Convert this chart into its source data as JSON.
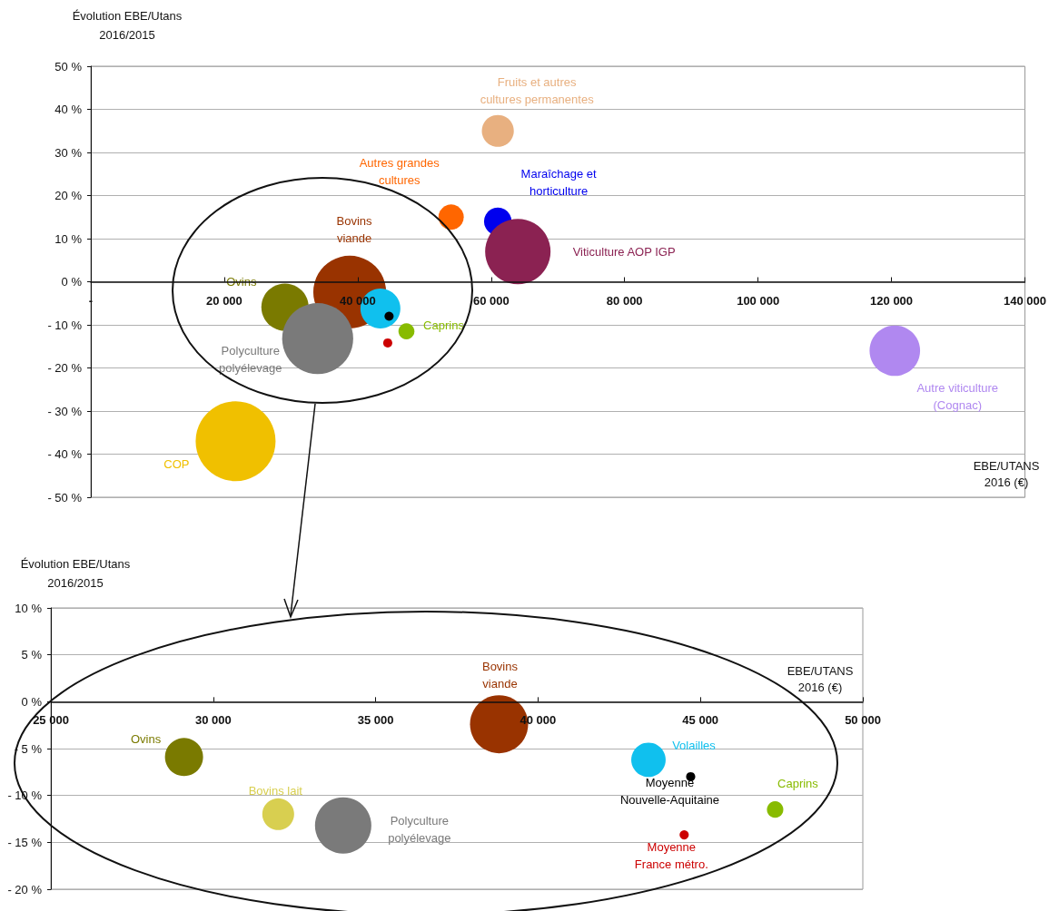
{
  "chart_data": [
    {
      "type": "bubble",
      "ylabel": "Évolution EBE/Utans\n2016/2015",
      "xlabel": "EBE/UTANS\n2016 (€)",
      "xlim": [
        0,
        140000
      ],
      "ylim": [
        -50,
        50
      ],
      "xticks": [
        {
          "value": 0,
          "label": "-"
        },
        {
          "value": 20000,
          "label": "20 000"
        },
        {
          "value": 40000,
          "label": "40 000"
        },
        {
          "value": 60000,
          "label": "60 000"
        },
        {
          "value": 80000,
          "label": "80 000"
        },
        {
          "value": 100000,
          "label": "100 000"
        },
        {
          "value": 120000,
          "label": "120 000"
        },
        {
          "value": 140000,
          "label": "140 000"
        }
      ],
      "yticks": [
        {
          "value": 50,
          "label": "50 %"
        },
        {
          "value": 40,
          "label": "40 %"
        },
        {
          "value": 30,
          "label": "30 %"
        },
        {
          "value": 20,
          "label": "20 %"
        },
        {
          "value": 10,
          "label": "10 %"
        },
        {
          "value": 0,
          "label": "0 %"
        },
        {
          "value": -10,
          "label": "- 10 %"
        },
        {
          "value": -20,
          "label": "- 20 %"
        },
        {
          "value": -30,
          "label": "- 30 %"
        },
        {
          "value": -40,
          "label": "- 40 %"
        },
        {
          "value": -50,
          "label": "- 50 %"
        }
      ],
      "grid": "y",
      "legend": false,
      "series": [
        {
          "name": "Fruits et autres\ncultures permanentes",
          "color": "#e8b080",
          "x": [
            61000
          ],
          "values": [
            35
          ],
          "sizes": [
            0.16
          ]
        },
        {
          "name": "Autres grandes\ncultures",
          "color": "#ff6600",
          "x": [
            54000
          ],
          "values": [
            15
          ],
          "sizes": [
            0.1
          ]
        },
        {
          "name": "Maraîchage et\nhorticulture",
          "color": "#0000ee",
          "x": [
            61000
          ],
          "values": [
            14
          ],
          "sizes": [
            0.12
          ]
        },
        {
          "name": "Viticulture AOP IGP",
          "color": "#8b2252",
          "x": [
            64000
          ],
          "values": [
            7
          ],
          "sizes": [
            0.67
          ]
        },
        {
          "name": "Bovins\nviande",
          "color": "#993300",
          "x": [
            38800
          ],
          "values": [
            -2.4
          ],
          "sizes": [
            0.83
          ]
        },
        {
          "name": "Ovins",
          "color": "#7a7a00",
          "x": [
            29100
          ],
          "values": [
            -5.9
          ],
          "sizes": [
            0.35
          ]
        },
        {
          "name": "Polyculture\npolyélevage",
          "color": "#7a7a7a",
          "x": [
            34000
          ],
          "values": [
            -13.2
          ],
          "sizes": [
            0.79
          ]
        },
        {
          "color": "#10c0ee",
          "x": [
            43400
          ],
          "values": [
            -6.2
          ],
          "sizes": [
            0.25
          ]
        },
        {
          "color": "#000000",
          "x": [
            44700
          ],
          "values": [
            -8
          ],
          "sizes": [
            0.013
          ]
        },
        {
          "color": "#cc0000",
          "x": [
            44500
          ],
          "values": [
            -14.2
          ],
          "sizes": [
            0.013
          ]
        },
        {
          "name": "Caprins",
          "color": "#88bb00",
          "x": [
            47300
          ],
          "values": [
            -11.5
          ],
          "sizes": [
            0.04
          ]
        },
        {
          "name": "COP",
          "color": "#f0c000",
          "x": [
            21700
          ],
          "values": [
            -37
          ],
          "sizes": [
            1
          ]
        },
        {
          "name": "Autre viticulture\n(Cognac)",
          "color": "#b088f0",
          "x": [
            120500
          ],
          "values": [
            -16
          ],
          "sizes": [
            0.4
          ]
        }
      ]
    },
    {
      "type": "bubble",
      "ylabel": "Évolution EBE/Utans\n2016/2015",
      "xlabel": "EBE/UTANS\n2016 (€)",
      "xlim": [
        25000,
        50000
      ],
      "ylim": [
        -20,
        10
      ],
      "xticks": [
        {
          "value": 25000,
          "label": "25 000"
        },
        {
          "value": 30000,
          "label": "30 000"
        },
        {
          "value": 35000,
          "label": "35 000"
        },
        {
          "value": 40000,
          "label": "40 000"
        },
        {
          "value": 45000,
          "label": "45 000"
        },
        {
          "value": 50000,
          "label": "50 000"
        }
      ],
      "yticks": [
        {
          "value": 10,
          "label": "10 %"
        },
        {
          "value": 5,
          "label": "5 %"
        },
        {
          "value": 0,
          "label": "0 %"
        },
        {
          "value": -5,
          "label": "- 5 %"
        },
        {
          "value": -10,
          "label": "- 10 %"
        },
        {
          "value": -15,
          "label": "- 15 %"
        },
        {
          "value": -20,
          "label": "- 20 %"
        }
      ],
      "grid": "y",
      "legend": false,
      "series": [
        {
          "name": "Bovins\nviande",
          "color": "#993300",
          "x": [
            38800
          ],
          "values": [
            -2.4
          ],
          "sizes": [
            1
          ]
        },
        {
          "name": "Ovins",
          "color": "#7a7a00",
          "x": [
            29100
          ],
          "values": [
            -5.9
          ],
          "sizes": [
            0.43
          ]
        },
        {
          "name": "Bovins lait",
          "color": "#d8cf50",
          "x": [
            32000
          ],
          "values": [
            -12
          ],
          "sizes": [
            0.3
          ]
        },
        {
          "name": "Polyculture\npolyélevage",
          "color": "#7a7a7a",
          "x": [
            34000
          ],
          "values": [
            -13.2
          ],
          "sizes": [
            0.94
          ]
        },
        {
          "name": "Volailles",
          "color": "#10c0ee",
          "x": [
            43400
          ],
          "values": [
            -6.2
          ],
          "sizes": [
            0.35
          ]
        },
        {
          "name": "Moyenne\nNouvelle-Aquitaine",
          "color": "#000000",
          "x": [
            44700
          ],
          "values": [
            -8
          ],
          "sizes": [
            0.025
          ]
        },
        {
          "name": "Moyenne\nFrance métro.",
          "color": "#cc0000",
          "x": [
            44500
          ],
          "values": [
            -14.2
          ],
          "sizes": [
            0.025
          ]
        },
        {
          "name": "Caprins",
          "color": "#88bb00",
          "x": [
            47300
          ],
          "values": [
            -11.5
          ],
          "sizes": [
            0.08
          ]
        }
      ]
    }
  ]
}
